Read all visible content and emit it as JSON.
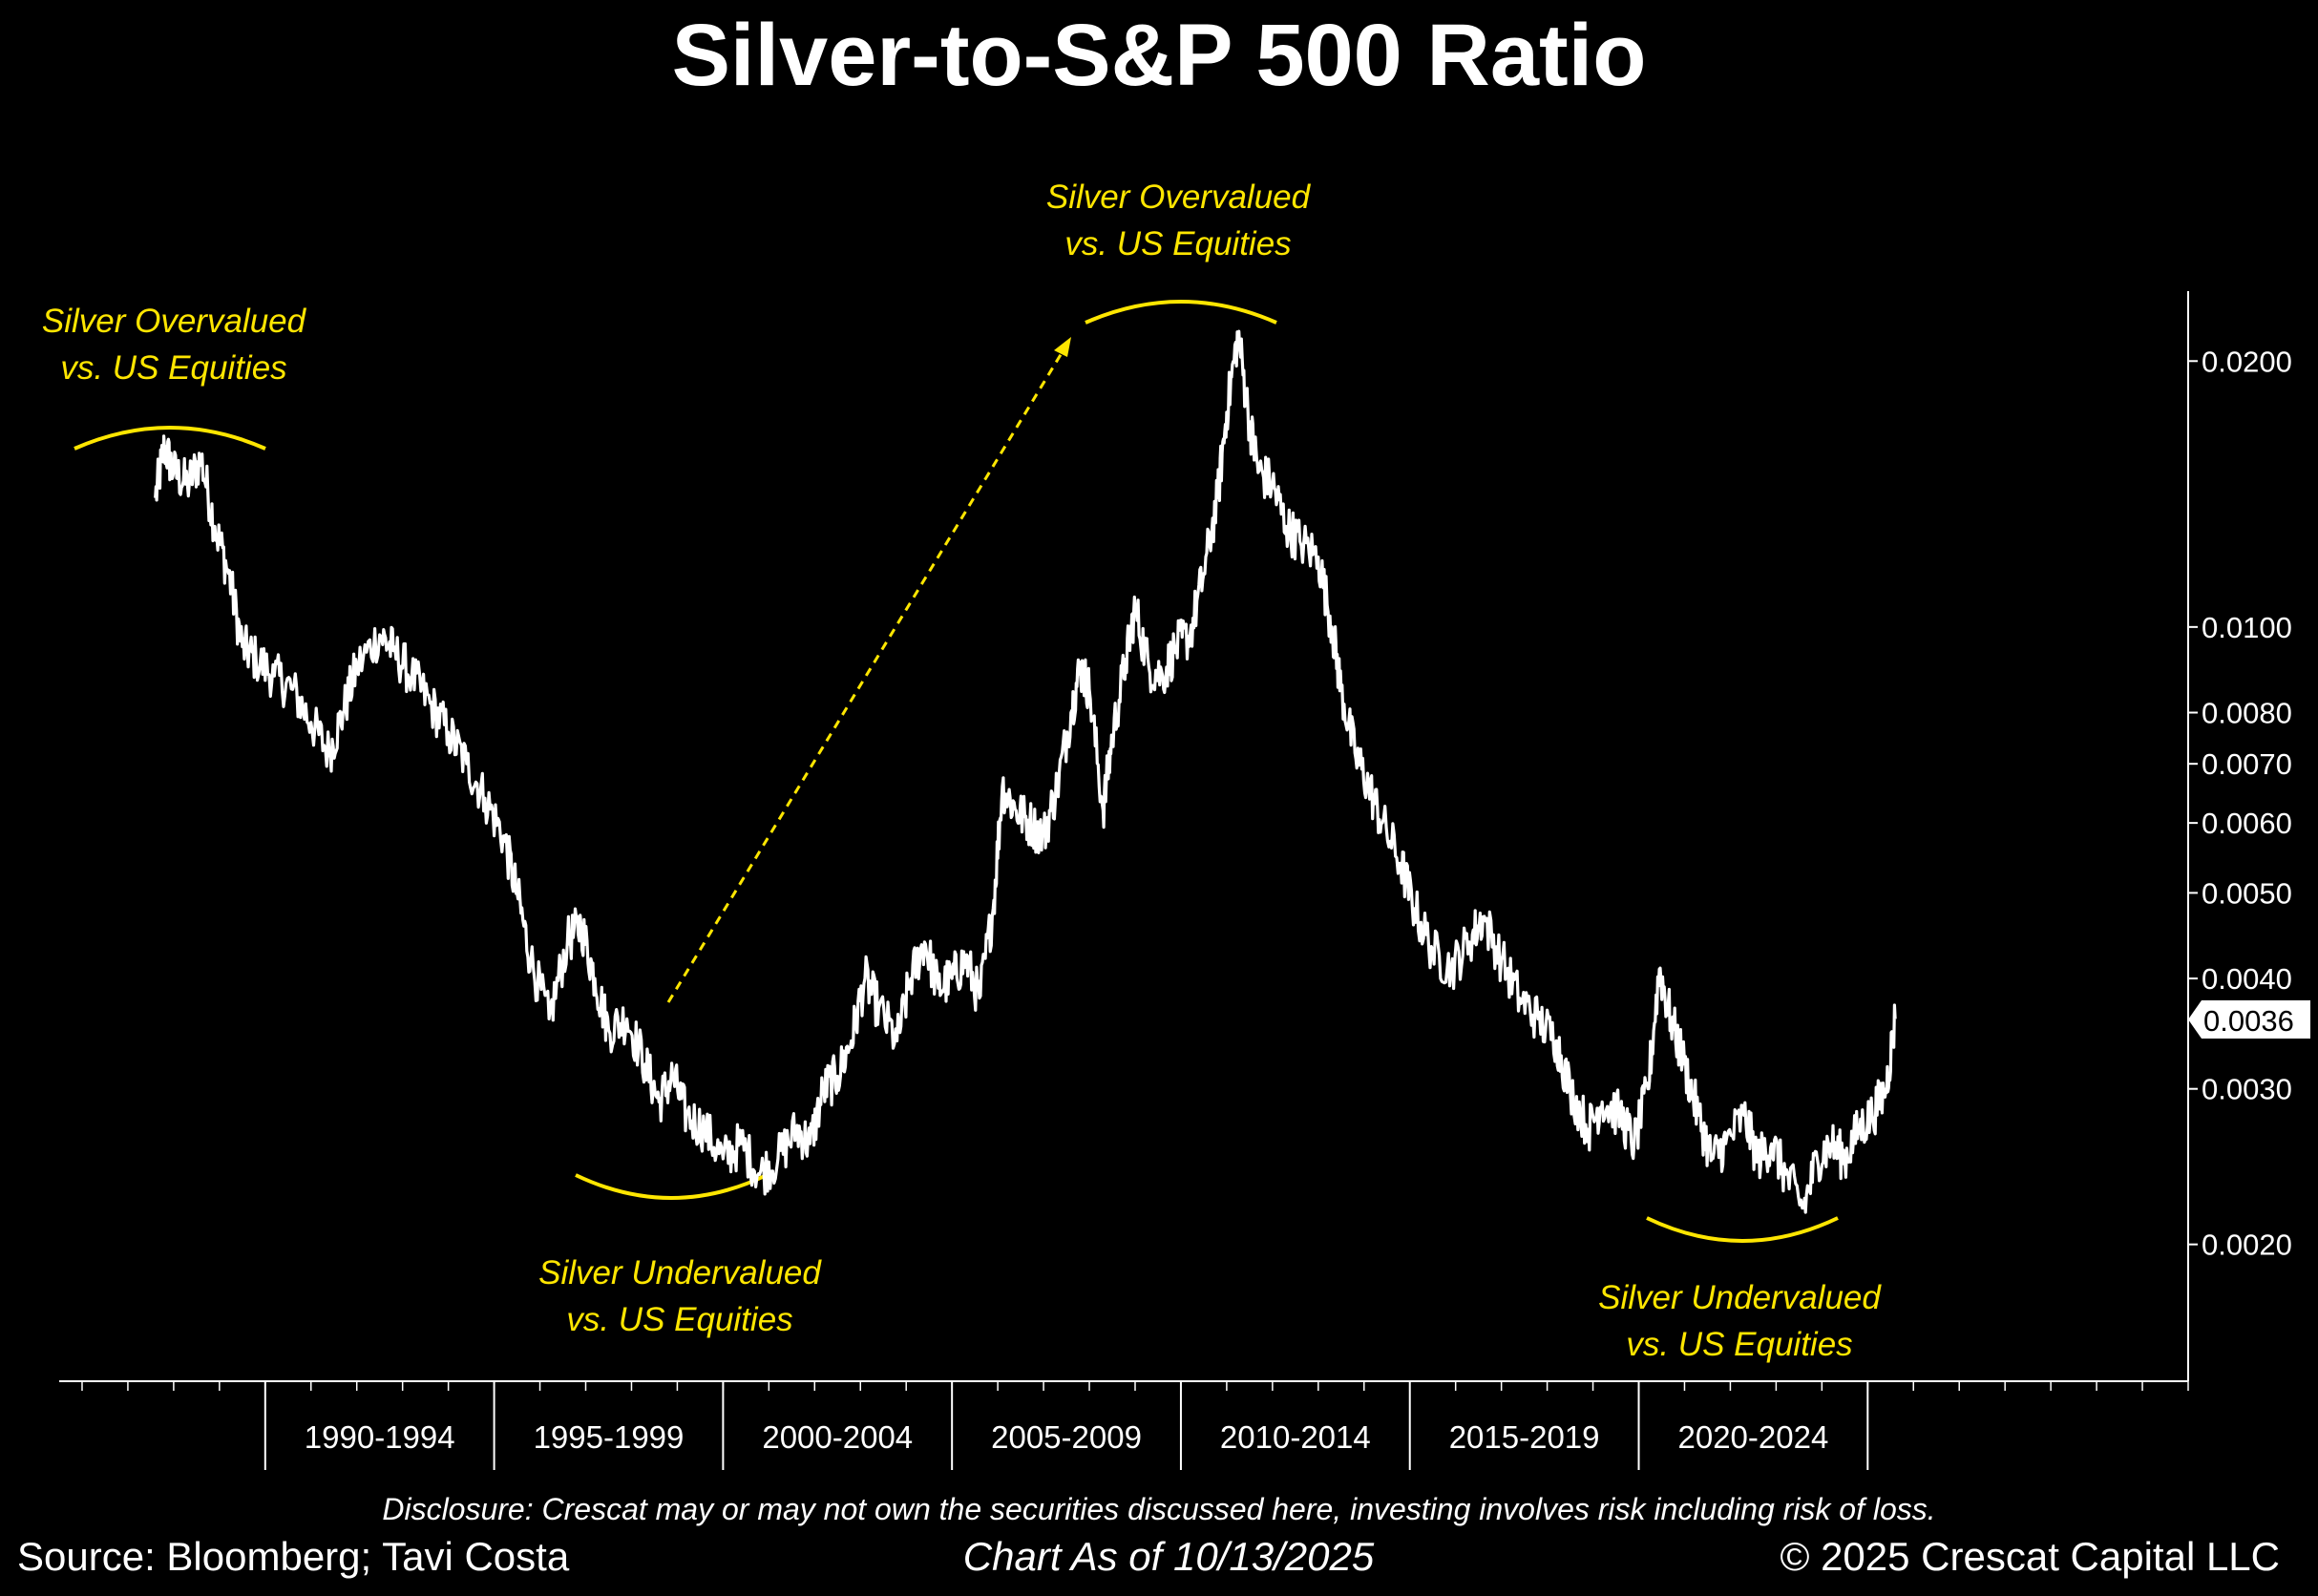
{
  "title": "Silver-to-S&P 500 Ratio",
  "colors": {
    "background": "#000000",
    "line": "#ffffff",
    "annotation": "#ffe600"
  },
  "annotations": [
    {
      "id": "overvalued-1",
      "lines": [
        "Silver Overvalued",
        "vs. US Equities"
      ]
    },
    {
      "id": "undervalued-1",
      "lines": [
        "Silver Undervalued",
        "vs. US Equities"
      ]
    },
    {
      "id": "overvalued-2",
      "lines": [
        "Silver Overvalued",
        "vs. US Equities"
      ]
    },
    {
      "id": "undervalued-2",
      "lines": [
        "Silver Undervalued",
        "vs. US Equities"
      ]
    }
  ],
  "current_value_label": "0.0036",
  "footer": {
    "disclosure": "Disclosure: Crescat may or may not own the securities discussed here, investing involves risk including risk of loss.",
    "source": "Source: Bloomberg; Tavi Costa",
    "as_of": "Chart As of 10/13/2025",
    "copyright": "© 2025 Crescat Capital LLC"
  },
  "chart_data": {
    "type": "line",
    "title": "Silver-to-S&P 500 Ratio",
    "y_scale": "log",
    "ylim": [
      0.0014,
      0.024
    ],
    "xlim": [
      1985.5,
      2032
    ],
    "y_ticks": [
      {
        "value": 0.02,
        "label": "0.0200"
      },
      {
        "value": 0.01,
        "label": "0.0100"
      },
      {
        "value": 0.008,
        "label": "0.0080"
      },
      {
        "value": 0.007,
        "label": "0.0070"
      },
      {
        "value": 0.006,
        "label": "0.0060"
      },
      {
        "value": 0.005,
        "label": "0.0050"
      },
      {
        "value": 0.004,
        "label": "0.0040"
      },
      {
        "value": 0.003,
        "label": "0.0030"
      },
      {
        "value": 0.002,
        "label": "0.0020"
      }
    ],
    "x_categories": [
      {
        "label": "1990-1994",
        "start": 1990,
        "end": 1995
      },
      {
        "label": "1995-1999",
        "start": 1995,
        "end": 2000
      },
      {
        "label": "2000-2004",
        "start": 2000,
        "end": 2005
      },
      {
        "label": "2005-2009",
        "start": 2005,
        "end": 2010
      },
      {
        "label": "2010-2014",
        "start": 2010,
        "end": 2015
      },
      {
        "label": "2015-2019",
        "start": 2015,
        "end": 2020
      },
      {
        "label": "2020-2024",
        "start": 2020,
        "end": 2025
      }
    ],
    "last_value": 0.0036,
    "points": [
      [
        1987.6,
        0.014
      ],
      [
        1987.8,
        0.016
      ],
      [
        1988.0,
        0.015
      ],
      [
        1988.3,
        0.0145
      ],
      [
        1988.6,
        0.0155
      ],
      [
        1988.9,
        0.013
      ],
      [
        1989.2,
        0.0115
      ],
      [
        1989.5,
        0.0095
      ],
      [
        1989.8,
        0.0092
      ],
      [
        1990.2,
        0.0088
      ],
      [
        1990.6,
        0.0085
      ],
      [
        1991.0,
        0.0078
      ],
      [
        1991.4,
        0.0072
      ],
      [
        1991.7,
        0.008
      ],
      [
        1992.0,
        0.009
      ],
      [
        1992.5,
        0.0098
      ],
      [
        1992.8,
        0.0094
      ],
      [
        1993.2,
        0.0088
      ],
      [
        1993.6,
        0.0082
      ],
      [
        1994.0,
        0.0076
      ],
      [
        1994.4,
        0.007
      ],
      [
        1994.8,
        0.0064
      ],
      [
        1995.2,
        0.0058
      ],
      [
        1995.5,
        0.005
      ],
      [
        1995.8,
        0.0042
      ],
      [
        1996.2,
        0.0036
      ],
      [
        1996.6,
        0.0044
      ],
      [
        1996.9,
        0.0046
      ],
      [
        1997.2,
        0.004
      ],
      [
        1997.5,
        0.0035
      ],
      [
        1997.9,
        0.0036
      ],
      [
        1998.3,
        0.0032
      ],
      [
        1998.6,
        0.0029
      ],
      [
        1998.9,
        0.0031
      ],
      [
        1999.2,
        0.0028
      ],
      [
        1999.6,
        0.0027
      ],
      [
        2000.0,
        0.0025
      ],
      [
        2000.4,
        0.0026
      ],
      [
        2000.8,
        0.0024
      ],
      [
        2001.2,
        0.0025
      ],
      [
        2001.6,
        0.0027
      ],
      [
        2001.9,
        0.0026
      ],
      [
        2002.2,
        0.003
      ],
      [
        2002.5,
        0.0031
      ],
      [
        2002.8,
        0.0034
      ],
      [
        2003.1,
        0.004
      ],
      [
        2003.4,
        0.0037
      ],
      [
        2003.8,
        0.0034
      ],
      [
        2004.1,
        0.004
      ],
      [
        2004.4,
        0.0044
      ],
      [
        2004.7,
        0.0039
      ],
      [
        2005.0,
        0.004
      ],
      [
        2005.3,
        0.0042
      ],
      [
        2005.6,
        0.0038
      ],
      [
        2005.9,
        0.0048
      ],
      [
        2006.1,
        0.0066
      ],
      [
        2006.4,
        0.0062
      ],
      [
        2006.7,
        0.006
      ],
      [
        2007.0,
        0.0058
      ],
      [
        2007.3,
        0.0066
      ],
      [
        2007.6,
        0.008
      ],
      [
        2007.8,
        0.009
      ],
      [
        2008.0,
        0.0085
      ],
      [
        2008.3,
        0.0062
      ],
      [
        2008.5,
        0.0075
      ],
      [
        2008.8,
        0.0092
      ],
      [
        2009.0,
        0.0105
      ],
      [
        2009.3,
        0.009
      ],
      [
        2009.6,
        0.0088
      ],
      [
        2009.9,
        0.0095
      ],
      [
        2010.2,
        0.0098
      ],
      [
        2010.5,
        0.0115
      ],
      [
        2010.8,
        0.014
      ],
      [
        2011.0,
        0.0175
      ],
      [
        2011.25,
        0.0215
      ],
      [
        2011.5,
        0.017
      ],
      [
        2011.7,
        0.015
      ],
      [
        2012.0,
        0.0145
      ],
      [
        2012.3,
        0.013
      ],
      [
        2012.6,
        0.0125
      ],
      [
        2013.0,
        0.012
      ],
      [
        2013.3,
        0.01
      ],
      [
        2013.5,
        0.0085
      ],
      [
        2013.8,
        0.0072
      ],
      [
        2014.1,
        0.0066
      ],
      [
        2014.4,
        0.006
      ],
      [
        2014.8,
        0.0054
      ],
      [
        2015.1,
        0.0048
      ],
      [
        2015.5,
        0.0043
      ],
      [
        2015.9,
        0.0041
      ],
      [
        2016.3,
        0.0044
      ],
      [
        2016.6,
        0.0047
      ],
      [
        2017.0,
        0.0042
      ],
      [
        2017.4,
        0.0038
      ],
      [
        2017.8,
        0.0036
      ],
      [
        2018.2,
        0.0034
      ],
      [
        2018.5,
        0.003
      ],
      [
        2018.9,
        0.0027
      ],
      [
        2019.2,
        0.0029
      ],
      [
        2019.6,
        0.0028
      ],
      [
        2019.9,
        0.0026
      ],
      [
        2020.2,
        0.003
      ],
      [
        2020.45,
        0.0041
      ],
      [
        2020.7,
        0.0036
      ],
      [
        2021.0,
        0.0032
      ],
      [
        2021.3,
        0.0028
      ],
      [
        2021.6,
        0.0025
      ],
      [
        2021.9,
        0.0026
      ],
      [
        2022.3,
        0.0028
      ],
      [
        2022.6,
        0.0025
      ],
      [
        2022.9,
        0.0026
      ],
      [
        2023.2,
        0.0024
      ],
      [
        2023.6,
        0.0022
      ],
      [
        2023.9,
        0.0025
      ],
      [
        2024.2,
        0.0026
      ],
      [
        2024.5,
        0.0025
      ],
      [
        2024.8,
        0.0027
      ],
      [
        2025.1,
        0.0028
      ],
      [
        2025.4,
        0.003
      ],
      [
        2025.6,
        0.0036
      ]
    ]
  }
}
